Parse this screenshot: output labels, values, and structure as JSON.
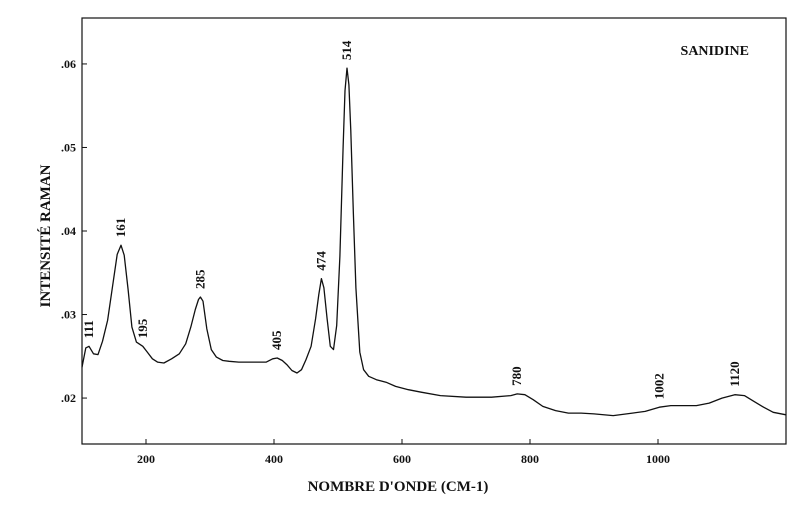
{
  "chart_data": {
    "type": "line",
    "title": "SANIDINE",
    "xlabel": "NOMBRE D'ONDE (CM-1)",
    "ylabel": "INTENSITÉ RAMAN",
    "xlim": [
      100,
      1200
    ],
    "ylim": [
      0.0145,
      0.0655
    ],
    "x_ticks": [
      200,
      400,
      600,
      800,
      1000
    ],
    "x_tick_labels": [
      "200",
      "400",
      "600",
      "800",
      "1000"
    ],
    "y_ticks": [
      0.02,
      0.03,
      0.04,
      0.05,
      0.06
    ],
    "y_tick_labels": [
      ".02",
      ".03",
      ".04",
      ".05",
      ".06"
    ],
    "grid": false,
    "legend": "none",
    "series": [
      {
        "x": [
          100,
          106,
          111,
          118,
          125,
          132,
          140,
          148,
          155,
          161,
          166,
          172,
          178,
          185,
          195,
          202,
          210,
          218,
          228,
          240,
          252,
          262,
          270,
          277,
          282,
          285,
          289,
          295,
          302,
          310,
          320,
          330,
          345,
          360,
          375,
          388,
          398,
          405,
          413,
          420,
          428,
          436,
          443,
          450,
          458,
          465,
          470,
          474,
          478,
          483,
          488,
          493,
          498,
          503,
          508,
          511,
          514,
          517,
          520,
          524,
          528,
          534,
          540,
          548,
          560,
          575,
          590,
          610,
          630,
          660,
          700,
          740,
          770,
          780,
          792,
          805,
          820,
          840,
          860,
          880,
          900,
          930,
          960,
          980,
          1002,
          1020,
          1040,
          1060,
          1080,
          1100,
          1120,
          1135,
          1150,
          1165,
          1180,
          1200
        ],
        "y": [
          0.0237,
          0.026,
          0.0262,
          0.0253,
          0.0252,
          0.0268,
          0.0293,
          0.0335,
          0.0372,
          0.0383,
          0.0371,
          0.033,
          0.0285,
          0.0267,
          0.0262,
          0.0255,
          0.0247,
          0.0243,
          0.0242,
          0.0247,
          0.0253,
          0.0265,
          0.0285,
          0.0306,
          0.0318,
          0.0321,
          0.0316,
          0.0283,
          0.0258,
          0.0249,
          0.0245,
          0.0244,
          0.0243,
          0.0243,
          0.0243,
          0.0243,
          0.0247,
          0.0248,
          0.0245,
          0.024,
          0.0233,
          0.023,
          0.0234,
          0.0246,
          0.0262,
          0.0295,
          0.0324,
          0.0343,
          0.0332,
          0.0295,
          0.0262,
          0.0258,
          0.0287,
          0.037,
          0.05,
          0.0568,
          0.0595,
          0.0575,
          0.052,
          0.042,
          0.0332,
          0.0255,
          0.0234,
          0.0226,
          0.0222,
          0.0219,
          0.0214,
          0.021,
          0.0207,
          0.0203,
          0.0201,
          0.0201,
          0.0203,
          0.0205,
          0.0204,
          0.0198,
          0.019,
          0.0185,
          0.0182,
          0.0182,
          0.0181,
          0.0179,
          0.0182,
          0.0184,
          0.0189,
          0.0191,
          0.0191,
          0.0191,
          0.0194,
          0.02,
          0.0204,
          0.0203,
          0.0196,
          0.0189,
          0.0183,
          0.018
        ]
      }
    ],
    "annotations": [
      {
        "text": "111",
        "x": 111,
        "y": 0.0262
      },
      {
        "text": "161",
        "x": 161,
        "y": 0.0383
      },
      {
        "text": "195",
        "x": 195,
        "y": 0.0262
      },
      {
        "text": "285",
        "x": 285,
        "y": 0.0321
      },
      {
        "text": "405",
        "x": 405,
        "y": 0.0248
      },
      {
        "text": "474",
        "x": 474,
        "y": 0.0343
      },
      {
        "text": "514",
        "x": 514,
        "y": 0.0595
      },
      {
        "text": "780",
        "x": 780,
        "y": 0.0205
      },
      {
        "text": "1002",
        "x": 1002,
        "y": 0.0189
      },
      {
        "text": "1120",
        "x": 1120,
        "y": 0.0204
      }
    ]
  }
}
